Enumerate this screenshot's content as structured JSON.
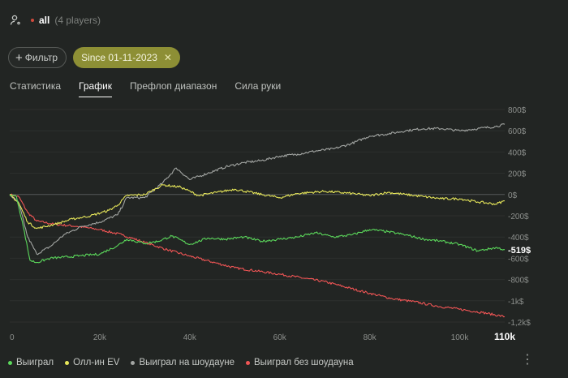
{
  "header": {
    "selection": "all",
    "players": "(4 players)"
  },
  "filters": {
    "add_label": "Фильтр",
    "date_label": "Since 01-11-2023"
  },
  "tabs": [
    {
      "label": "Статистика",
      "active": false
    },
    {
      "label": "График",
      "active": true
    },
    {
      "label": "Префлоп диапазон",
      "active": false
    },
    {
      "label": "Сила руки",
      "active": false
    }
  ],
  "chart_data": {
    "type": "line",
    "x_ticks": [
      "0",
      "20k",
      "40k",
      "60k",
      "80k",
      "100k"
    ],
    "x_end_label": "110k",
    "xlim": [
      0,
      110000
    ],
    "y_ticks": [
      "800$",
      "600$",
      "400$",
      "200$",
      "0$",
      "-200$",
      "-400$",
      "-600$",
      "-800$",
      "-1k$",
      "-1,2k$"
    ],
    "ylim": [
      -1200,
      800
    ],
    "current_value_label": "-519$",
    "series": [
      {
        "name": "Выиграл",
        "color": "#5bd85b",
        "x": [
          0,
          1500,
          3000,
          4500,
          6000,
          9000,
          12000,
          16000,
          20000,
          24000,
          26000,
          30000,
          33000,
          36000,
          40000,
          44000,
          48000,
          52000,
          56000,
          60000,
          64000,
          68000,
          72000,
          76000,
          80000,
          84000,
          88000,
          92000,
          96000,
          100000,
          104000,
          108000,
          110000
        ],
        "y": [
          0,
          -20,
          -300,
          -620,
          -640,
          -600,
          -590,
          -575,
          -560,
          -480,
          -420,
          -460,
          -440,
          -390,
          -470,
          -410,
          -420,
          -400,
          -440,
          -420,
          -400,
          -360,
          -400,
          -380,
          -330,
          -350,
          -380,
          -420,
          -440,
          -470,
          -530,
          -500,
          -519
        ]
      },
      {
        "name": "Олл-ин EV",
        "color": "#e8e85a",
        "x": [
          0,
          2000,
          4000,
          6000,
          10000,
          14000,
          18000,
          22000,
          24000,
          26000,
          30000,
          34000,
          38000,
          42000,
          46000,
          50000,
          56000,
          60000,
          64000,
          70000,
          76000,
          80000,
          84000,
          88000,
          92000,
          96000,
          100000,
          104000,
          108000,
          110000
        ],
        "y": [
          0,
          -80,
          -260,
          -320,
          -280,
          -230,
          -200,
          -150,
          -100,
          -10,
          0,
          90,
          70,
          -10,
          20,
          50,
          0,
          -30,
          10,
          30,
          10,
          -10,
          20,
          0,
          -20,
          -40,
          -40,
          -70,
          -90,
          -60
        ]
      },
      {
        "name": "Выиграл на шоудауне",
        "color": "#a3a6a3",
        "x": [
          0,
          2000,
          4000,
          6000,
          9000,
          12000,
          16000,
          20000,
          24000,
          26000,
          30000,
          34000,
          37000,
          40000,
          44000,
          48000,
          52000,
          56000,
          60000,
          64000,
          68000,
          72000,
          76000,
          80000,
          84000,
          88000,
          92000,
          96000,
          100000,
          104000,
          108000,
          110000
        ],
        "y": [
          0,
          -80,
          -400,
          -560,
          -490,
          -380,
          -300,
          -260,
          -190,
          -30,
          -30,
          110,
          250,
          140,
          200,
          260,
          300,
          320,
          360,
          380,
          410,
          430,
          480,
          550,
          570,
          600,
          620,
          620,
          600,
          620,
          640,
          660
        ]
      },
      {
        "name": "Выиграл без шоудауна",
        "color": "#f05555",
        "x": [
          0,
          2000,
          4000,
          6000,
          10000,
          15000,
          20000,
          25000,
          30000,
          35000,
          40000,
          50000,
          60000,
          70000,
          80000,
          85000,
          90000,
          95000,
          100000,
          105000,
          110000
        ],
        "y": [
          0,
          -20,
          -170,
          -250,
          -280,
          -300,
          -330,
          -380,
          -450,
          -520,
          -580,
          -690,
          -750,
          -820,
          -930,
          -980,
          -1010,
          -1050,
          -1080,
          -1110,
          -1150
        ]
      }
    ]
  }
}
